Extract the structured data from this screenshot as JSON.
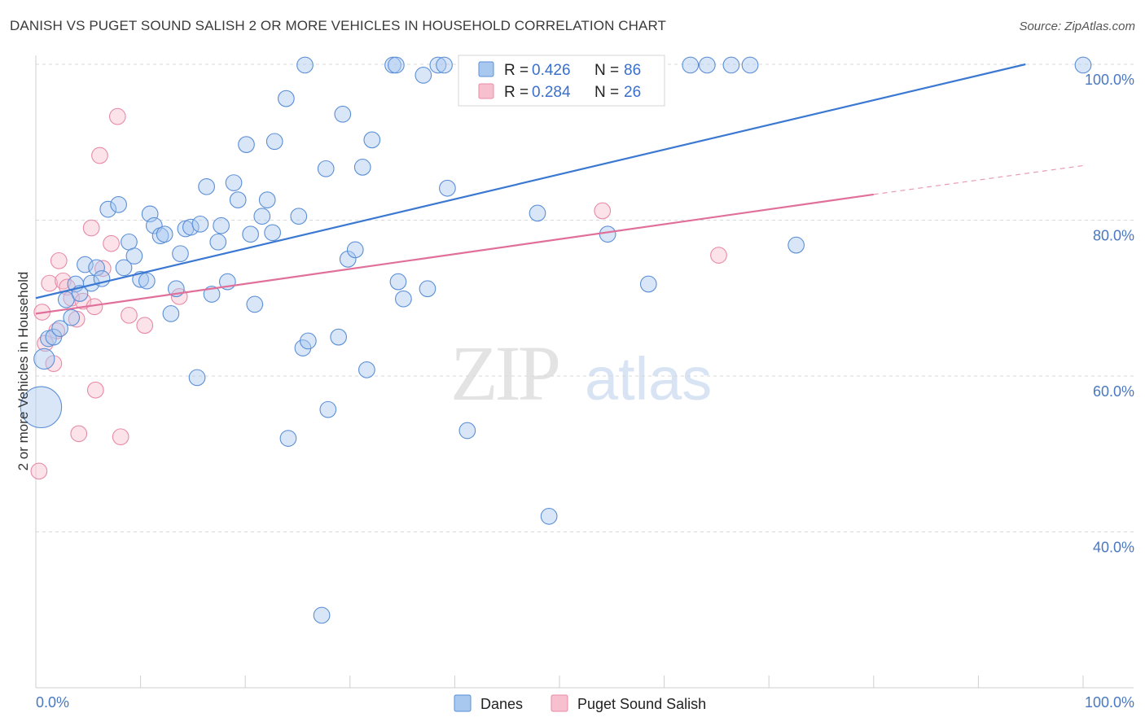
{
  "title": "DANISH VS PUGET SOUND SALISH 2 OR MORE VEHICLES IN HOUSEHOLD CORRELATION CHART",
  "source": "Source: ZipAtlas.com",
  "watermark": {
    "zip": "ZIP",
    "atlas": "atlas"
  },
  "colors": {
    "danes_fill": "#a9c8f0",
    "danes_stroke": "#5b8fd6",
    "danes_line": "#3a78d2",
    "salish_fill": "#f7c0cf",
    "salish_stroke": "#e88aa6",
    "salish_line": "#e0709a",
    "axis_label": "#4a78c0",
    "grid": "#d9d9d9"
  },
  "legend_top": {
    "rows": [
      {
        "r_label": "R = ",
        "r_value": "0.426",
        "n_label": "N = ",
        "n_value": "86",
        "series": "danes"
      },
      {
        "r_label": "R = ",
        "r_value": "0.284",
        "n_label": "N = ",
        "n_value": "26",
        "series": "salish"
      }
    ]
  },
  "legend_bottom": [
    {
      "label": "Danes",
      "series": "danes"
    },
    {
      "label": "Puget Sound Salish",
      "series": "salish"
    }
  ],
  "chart_data": {
    "type": "scatter",
    "title": "DANISH VS PUGET SOUND SALISH 2 OR MORE VEHICLES IN HOUSEHOLD CORRELATION CHART",
    "xlabel": "",
    "ylabel": "2 or more Vehicles in Household",
    "xlim": [
      0,
      100
    ],
    "ylim": [
      20,
      102
    ],
    "x_tick_labels": [
      "0.0%",
      "100.0%"
    ],
    "y_tick_labels": [
      "40.0%",
      "60.0%",
      "80.0%",
      "100.0%"
    ],
    "y_ticks": [
      40,
      60,
      80,
      100
    ],
    "grid": true,
    "legend_position": "top-center",
    "series": [
      {
        "name": "Danes",
        "key": "danes",
        "r": 0.426,
        "n": 86,
        "trend": {
          "x0": 0,
          "y0": 70.0,
          "x1": 94.5,
          "y1": 100.0,
          "dashed_to": null
        },
        "points": [
          [
            0.5,
            56.0,
            18
          ],
          [
            0.8,
            62.2,
            9
          ],
          [
            1.2,
            64.8,
            7
          ],
          [
            1.7,
            65.0,
            7
          ],
          [
            2.3,
            66.1,
            7
          ],
          [
            2.9,
            69.8,
            7
          ],
          [
            3.4,
            67.5,
            7
          ],
          [
            3.8,
            71.8,
            7
          ],
          [
            4.2,
            70.6,
            7
          ],
          [
            4.7,
            74.3,
            7
          ],
          [
            5.3,
            71.9,
            7
          ],
          [
            5.8,
            73.9,
            7
          ],
          [
            6.3,
            72.5,
            7
          ],
          [
            6.9,
            81.4,
            7
          ],
          [
            7.9,
            82.0,
            7
          ],
          [
            8.4,
            73.9,
            7
          ],
          [
            8.9,
            77.2,
            7
          ],
          [
            9.4,
            75.4,
            7
          ],
          [
            10.0,
            72.4,
            7
          ],
          [
            10.6,
            72.2,
            7
          ],
          [
            10.9,
            80.8,
            7
          ],
          [
            11.3,
            79.3,
            7
          ],
          [
            11.9,
            78.0,
            7
          ],
          [
            12.3,
            78.2,
            7
          ],
          [
            12.9,
            68.0,
            7
          ],
          [
            13.4,
            71.2,
            7
          ],
          [
            13.8,
            75.7,
            7
          ],
          [
            14.3,
            78.9,
            7
          ],
          [
            14.8,
            79.1,
            7
          ],
          [
            15.4,
            59.8,
            7
          ],
          [
            15.7,
            79.5,
            7
          ],
          [
            16.3,
            84.3,
            7
          ],
          [
            16.8,
            70.5,
            7
          ],
          [
            17.4,
            77.2,
            7
          ],
          [
            17.7,
            79.3,
            7
          ],
          [
            18.3,
            72.1,
            7
          ],
          [
            18.9,
            84.8,
            7
          ],
          [
            19.3,
            82.6,
            7
          ],
          [
            20.1,
            89.7,
            7
          ],
          [
            20.5,
            78.2,
            7
          ],
          [
            20.9,
            69.2,
            7
          ],
          [
            21.6,
            80.5,
            7
          ],
          [
            22.1,
            82.6,
            7
          ],
          [
            22.6,
            78.4,
            7
          ],
          [
            22.8,
            90.1,
            7
          ],
          [
            23.9,
            95.6,
            7
          ],
          [
            24.1,
            52.0,
            7
          ],
          [
            25.1,
            80.5,
            7
          ],
          [
            25.5,
            63.6,
            7
          ],
          [
            25.7,
            99.9,
            7
          ],
          [
            26.0,
            64.5,
            7
          ],
          [
            27.3,
            29.3,
            7
          ],
          [
            27.7,
            86.6,
            7
          ],
          [
            27.9,
            55.7,
            7
          ],
          [
            28.9,
            65.0,
            7
          ],
          [
            29.3,
            93.6,
            7
          ],
          [
            29.8,
            75.0,
            7
          ],
          [
            30.5,
            76.2,
            7
          ],
          [
            31.2,
            86.8,
            7
          ],
          [
            31.6,
            60.8,
            7
          ],
          [
            32.1,
            90.3,
            7
          ],
          [
            34.1,
            99.9,
            7
          ],
          [
            34.4,
            99.9,
            7
          ],
          [
            34.6,
            72.1,
            7
          ],
          [
            35.1,
            69.9,
            7
          ],
          [
            37.0,
            98.6,
            7
          ],
          [
            37.4,
            71.2,
            7
          ],
          [
            38.4,
            99.9,
            7
          ],
          [
            39.0,
            99.9,
            7
          ],
          [
            39.3,
            84.1,
            7
          ],
          [
            41.2,
            53.0,
            7
          ],
          [
            47.9,
            80.9,
            7
          ],
          [
            49.0,
            42.0,
            7
          ],
          [
            52.0,
            99.9,
            7
          ],
          [
            52.9,
            99.9,
            7
          ],
          [
            54.6,
            78.2,
            7
          ],
          [
            58.5,
            71.8,
            7
          ],
          [
            62.5,
            99.9,
            7
          ],
          [
            64.1,
            99.9,
            7
          ],
          [
            66.4,
            99.9,
            7
          ],
          [
            68.2,
            99.9,
            7
          ],
          [
            72.6,
            76.8,
            7
          ],
          [
            100.0,
            99.9,
            7
          ]
        ]
      },
      {
        "name": "Puget Sound Salish",
        "key": "salish",
        "r": 0.284,
        "n": 26,
        "trend": {
          "x0": 0,
          "y0": 68.0,
          "x1": 80.0,
          "y1": 83.3,
          "dashed_to": {
            "x": 100,
            "y": 87.0
          }
        },
        "points": [
          [
            0.3,
            47.8,
            7
          ],
          [
            0.6,
            68.2,
            7
          ],
          [
            0.9,
            64.2,
            7
          ],
          [
            1.3,
            71.9,
            7
          ],
          [
            1.7,
            61.6,
            7
          ],
          [
            2.0,
            65.8,
            7
          ],
          [
            2.2,
            74.8,
            7
          ],
          [
            2.6,
            72.2,
            7
          ],
          [
            3.0,
            71.4,
            7
          ],
          [
            3.4,
            70.0,
            7
          ],
          [
            3.9,
            67.3,
            7
          ],
          [
            4.1,
            52.6,
            7
          ],
          [
            4.5,
            69.6,
            7
          ],
          [
            5.3,
            79.0,
            7
          ],
          [
            5.6,
            68.9,
            7
          ],
          [
            5.7,
            58.2,
            7
          ],
          [
            6.1,
            88.3,
            7
          ],
          [
            6.4,
            73.8,
            7
          ],
          [
            7.2,
            77.0,
            7
          ],
          [
            7.8,
            93.3,
            7
          ],
          [
            8.1,
            52.2,
            7
          ],
          [
            8.9,
            67.8,
            7
          ],
          [
            10.4,
            66.5,
            7
          ],
          [
            13.7,
            70.2,
            7
          ],
          [
            54.1,
            81.2,
            7
          ],
          [
            65.2,
            75.5,
            7
          ]
        ]
      }
    ]
  }
}
